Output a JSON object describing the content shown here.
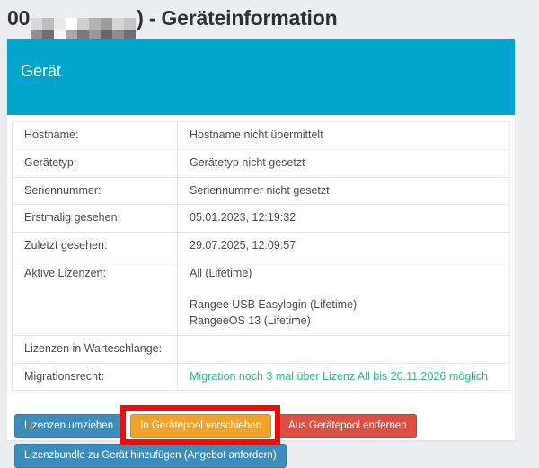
{
  "title": {
    "prefix": "00",
    "suffix": ") - Geräteinformation",
    "mosaic_colors": [
      "#d8d8d8",
      "#bdbdbd",
      "#e9e9e9",
      "#ffffff",
      "#cfcfcf",
      "#b3b3b3",
      "#9e9e9e",
      "#d6d6d6",
      "#c4c4c4",
      "#8f8f8f",
      "#6f6f6f",
      "#f5f5f5",
      "#a8a8a8",
      "#7a7a7a",
      "#999999",
      "#666666",
      "#8c8c8c",
      "#707070"
    ]
  },
  "panel": {
    "heading": "Gerät"
  },
  "device_info": {
    "rows": [
      {
        "label": "Hostname:",
        "value": "Hostname nicht übermittelt"
      },
      {
        "label": "Gerätetyp:",
        "value": "Gerätetyp nicht gesetzt"
      },
      {
        "label": "Seriennummer:",
        "value": "Seriennummer nicht gesetzt"
      },
      {
        "label": "Erstmalig gesehen:",
        "value": "05.01.2023, 12:19:32"
      },
      {
        "label": "Zuletzt gesehen:",
        "value": "29.07.2025, 12:09:57"
      },
      {
        "label": "Aktive Lizenzen:",
        "value": [
          "All (Lifetime)",
          "",
          "Rangee USB Easylogin (Lifetime)",
          "RangeeOS 13 (Lifetime)"
        ]
      },
      {
        "label": "Lizenzen in Warteschlange:",
        "value": ""
      },
      {
        "label": "Migrationsrecht:",
        "value": "Migration noch 3 mal über Lizenz All bis 20.11.2026 möglich",
        "color": "green"
      }
    ]
  },
  "buttons": {
    "row1": [
      {
        "name": "move-licenses-button",
        "label": "Lizenzen umziehen",
        "style": "blue"
      },
      {
        "name": "move-to-device-pool-button",
        "label": "In Gerätepool verschieben",
        "style": "orange",
        "highlighted": true
      },
      {
        "name": "remove-from-device-pool-button",
        "label": "Aus Gerätepool entfernen",
        "style": "red"
      }
    ],
    "row2": [
      {
        "name": "add-license-bundle-button",
        "label": "Lizenzbundle zu Gerät hinzufügen (Angebot anfordern)",
        "style": "blue"
      }
    ]
  },
  "annotation": {
    "target": "move-to-device-pool-button",
    "color": "#ea0e0e"
  },
  "colors": {
    "header": "#00a4cd",
    "green": "#2fb886",
    "blue": "#3d8dbc",
    "orange": "#f3a229",
    "red": "#dc5044",
    "page_background": "#ecedf0"
  }
}
